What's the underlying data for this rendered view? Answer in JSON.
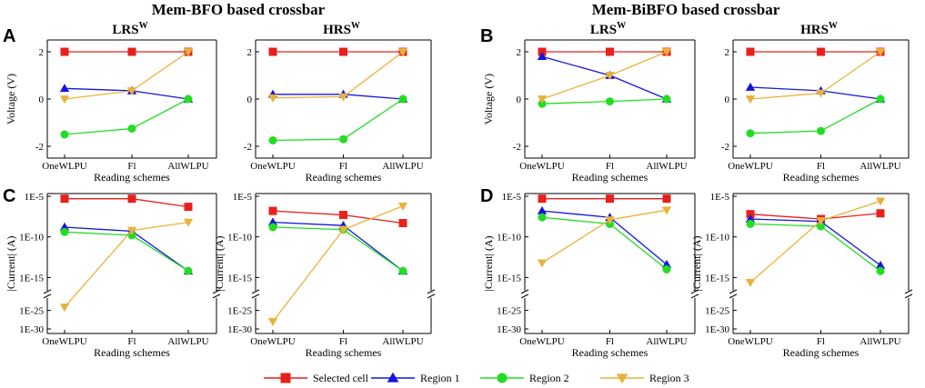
{
  "figure": {
    "group_titles": [
      "Mem-BFO based crossbar",
      "Mem-BiBFO based crossbar"
    ],
    "panel_letters": [
      "A",
      "B",
      "C",
      "D"
    ]
  },
  "legend": [
    {
      "label": "Selected cell",
      "color": "#e8201c",
      "marker": "square"
    },
    {
      "label": "Region 1",
      "color": "#1515e0",
      "marker": "triangle-up"
    },
    {
      "label": "Region 2",
      "color": "#22dd22",
      "marker": "circle"
    },
    {
      "label": "Region 3",
      "color": "#e8b23a",
      "marker": "triangle-down"
    }
  ],
  "chart_data": [
    {
      "type": "line",
      "panel": "A",
      "title": "LRS",
      "title_sup": "W",
      "categories": [
        "OneWLPU",
        "Fl",
        "AllWLPU"
      ],
      "xlabel": "Reading schemes",
      "ylabel": "Voltage (V)",
      "ylim": [
        -2.5,
        2.5
      ],
      "yticks": [
        -2,
        0,
        2
      ],
      "ytick_labels": [
        "-2",
        "0",
        "2"
      ],
      "scale": "linear",
      "series": [
        {
          "name": "Selected cell",
          "values": [
            2,
            2,
            2
          ]
        },
        {
          "name": "Region 1",
          "values": [
            0.45,
            0.35,
            0
          ]
        },
        {
          "name": "Region 2",
          "values": [
            -1.5,
            -1.25,
            0
          ]
        },
        {
          "name": "Region 3",
          "values": [
            0,
            0.35,
            2
          ]
        }
      ]
    },
    {
      "type": "line",
      "panel": "A",
      "title": "HRS",
      "title_sup": "W",
      "categories": [
        "OneWLPU",
        "Fl",
        "AllWLPU"
      ],
      "xlabel": "Reading schemes",
      "ylabel": "",
      "ylim": [
        -2.5,
        2.5
      ],
      "yticks": [
        -2,
        0,
        2
      ],
      "ytick_labels": [
        "-2",
        "0",
        "2"
      ],
      "scale": "linear",
      "series": [
        {
          "name": "Selected cell",
          "values": [
            2,
            2,
            2
          ]
        },
        {
          "name": "Region 1",
          "values": [
            0.2,
            0.2,
            0
          ]
        },
        {
          "name": "Region 2",
          "values": [
            -1.75,
            -1.7,
            0
          ]
        },
        {
          "name": "Region 3",
          "values": [
            0.05,
            0.1,
            2
          ]
        }
      ]
    },
    {
      "type": "line",
      "panel": "B",
      "title": "LRS",
      "title_sup": "W",
      "categories": [
        "OneWLPU",
        "Fl",
        "AllWLPU"
      ],
      "xlabel": "Reading schemes",
      "ylabel": "Voltage (V)",
      "ylim": [
        -2.5,
        2.5
      ],
      "yticks": [
        -2,
        0,
        2
      ],
      "ytick_labels": [
        "-2",
        "0",
        "2"
      ],
      "scale": "linear",
      "series": [
        {
          "name": "Selected cell",
          "values": [
            2,
            2,
            2
          ]
        },
        {
          "name": "Region 1",
          "values": [
            1.8,
            1,
            0
          ]
        },
        {
          "name": "Region 2",
          "values": [
            -0.2,
            -0.1,
            0
          ]
        },
        {
          "name": "Region 3",
          "values": [
            0,
            1,
            2
          ]
        }
      ]
    },
    {
      "type": "line",
      "panel": "B",
      "title": "HRS",
      "title_sup": "W",
      "categories": [
        "OneWLPU",
        "Fl",
        "AllWLPU"
      ],
      "xlabel": "Reading schemes",
      "ylabel": "",
      "ylim": [
        -2.5,
        2.5
      ],
      "yticks": [
        -2,
        0,
        2
      ],
      "ytick_labels": [
        "-2",
        "0",
        "2"
      ],
      "scale": "linear",
      "series": [
        {
          "name": "Selected cell",
          "values": [
            2,
            2,
            2
          ]
        },
        {
          "name": "Region 1",
          "values": [
            0.5,
            0.35,
            0
          ]
        },
        {
          "name": "Region 2",
          "values": [
            -1.45,
            -1.35,
            0
          ]
        },
        {
          "name": "Region 3",
          "values": [
            0,
            0.25,
            2
          ]
        }
      ]
    },
    {
      "type": "line",
      "panel": "C",
      "title": "",
      "title_sup": "",
      "categories": [
        "OneWLPU",
        "Fl",
        "AllWLPU"
      ],
      "xlabel": "Reading schemes",
      "ylabel": "|Current| (A)",
      "scale": "log-broken",
      "ylim_exp": [
        -30,
        -5
      ],
      "break_exp": [
        -15,
        -25
      ],
      "yticks_exp": [
        -5,
        -10,
        -15,
        -25,
        -30
      ],
      "ytick_labels": [
        "1E-5",
        "1E-10",
        "1E-15",
        "1E-25",
        "1E-30"
      ],
      "series": [
        {
          "name": "Selected cell",
          "exp": [
            -5.3,
            -5.3,
            -6.3
          ]
        },
        {
          "name": "Region 1",
          "exp": [
            -8.8,
            -9.3,
            -14.2
          ]
        },
        {
          "name": "Region 2",
          "exp": [
            -9.4,
            -9.8,
            -14.2
          ]
        },
        {
          "name": "Region 3",
          "exp": [
            -24,
            -9.2,
            -8.2
          ]
        }
      ]
    },
    {
      "type": "line",
      "panel": "C",
      "title": "",
      "title_sup": "",
      "categories": [
        "OneWLPU",
        "Fl",
        "AllWLPU"
      ],
      "xlabel": "Reading schemes",
      "ylabel": "|Current| (A)",
      "scale": "log-broken",
      "ylim_exp": [
        -30,
        -5
      ],
      "break_exp": [
        -15,
        -25
      ],
      "yticks_exp": [
        -5,
        -10,
        -15,
        -25,
        -30
      ],
      "ytick_labels": [
        "1E-5",
        "1E-10",
        "1E-15",
        "1E-25",
        "1E-30"
      ],
      "series": [
        {
          "name": "Selected cell",
          "exp": [
            -6.8,
            -7.3,
            -8.3
          ]
        },
        {
          "name": "Region 1",
          "exp": [
            -8.2,
            -8.6,
            -14.2
          ]
        },
        {
          "name": "Region 2",
          "exp": [
            -8.8,
            -9.1,
            -14.2
          ]
        },
        {
          "name": "Region 3",
          "exp": [
            -28,
            -9.1,
            -6.2
          ]
        }
      ]
    },
    {
      "type": "line",
      "panel": "D",
      "title": "",
      "title_sup": "",
      "categories": [
        "OneWLPU",
        "Fl",
        "AllWLPU"
      ],
      "xlabel": "Reading schemes",
      "ylabel": "|Current| (A)",
      "scale": "log-broken",
      "ylim_exp": [
        -30,
        -5
      ],
      "break_exp": [
        -15,
        -25
      ],
      "yticks_exp": [
        -5,
        -10,
        -15,
        -25,
        -30
      ],
      "ytick_labels": [
        "1E-5",
        "1E-10",
        "1E-15",
        "1E-25",
        "1E-30"
      ],
      "series": [
        {
          "name": "Selected cell",
          "exp": [
            -5.3,
            -5.3,
            -5.3
          ]
        },
        {
          "name": "Region 1",
          "exp": [
            -6.8,
            -7.6,
            -13.4
          ]
        },
        {
          "name": "Region 2",
          "exp": [
            -7.6,
            -8.4,
            -14
          ]
        },
        {
          "name": "Region 3",
          "exp": [
            -13.2,
            -7.9,
            -6.7
          ]
        }
      ]
    },
    {
      "type": "line",
      "panel": "D",
      "title": "",
      "title_sup": "",
      "categories": [
        "OneWLPU",
        "Fl",
        "AllWLPU"
      ],
      "xlabel": "Reading schemes",
      "ylabel": "|Current| (A)",
      "scale": "log-broken",
      "ylim_exp": [
        -30,
        -5
      ],
      "break_exp": [
        -15,
        -25
      ],
      "yticks_exp": [
        -5,
        -10,
        -15,
        -25,
        -30
      ],
      "ytick_labels": [
        "1E-5",
        "1E-10",
        "1E-15",
        "1E-25",
        "1E-30"
      ],
      "series": [
        {
          "name": "Selected cell",
          "exp": [
            -7.2,
            -7.8,
            -7.1
          ]
        },
        {
          "name": "Region 1",
          "exp": [
            -7.8,
            -8.1,
            -13.5
          ]
        },
        {
          "name": "Region 2",
          "exp": [
            -8.4,
            -8.7,
            -14.2
          ]
        },
        {
          "name": "Region 3",
          "exp": [
            -16.5,
            -8,
            -5.6
          ]
        }
      ]
    }
  ]
}
